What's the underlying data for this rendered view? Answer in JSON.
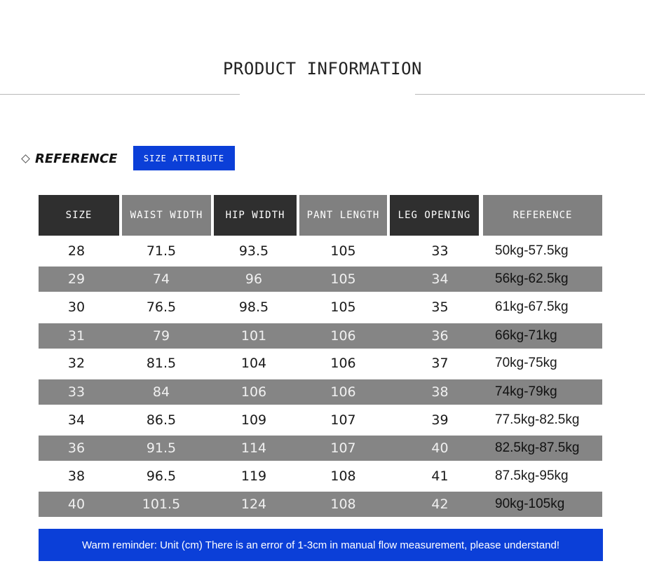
{
  "title": "PRODUCT INFORMATION",
  "reference_label": "REFERENCE",
  "badge": "SIZE ATTRIBUTE",
  "table": {
    "headers": [
      "SIZE",
      "WAIST WIDTH",
      "HIP WIDTH",
      "PANT LENGTH",
      "LEG OPENING",
      "REFERENCE"
    ],
    "rows": [
      [
        "28",
        "71.5",
        "93.5",
        "105",
        "33",
        "50kg-57.5kg"
      ],
      [
        "29",
        "74",
        "96",
        "105",
        "34",
        "56kg-62.5kg"
      ],
      [
        "30",
        "76.5",
        "98.5",
        "105",
        "35",
        "61kg-67.5kg"
      ],
      [
        "31",
        "79",
        "101",
        "106",
        "36",
        "66kg-71kg"
      ],
      [
        "32",
        "81.5",
        "104",
        "106",
        "37",
        "70kg-75kg"
      ],
      [
        "33",
        "84",
        "106",
        "106",
        "38",
        "74kg-79kg"
      ],
      [
        "34",
        "86.5",
        "109",
        "107",
        "39",
        "77.5kg-82.5kg"
      ],
      [
        "36",
        "91.5",
        "114",
        "107",
        "40",
        "82.5kg-87.5kg"
      ],
      [
        "38",
        "96.5",
        "119",
        "108",
        "41",
        "87.5kg-95kg"
      ],
      [
        "40",
        "101.5",
        "124",
        "108",
        "42",
        "90kg-105kg"
      ]
    ]
  },
  "reminder": "Warm reminder: Unit (cm) There is an error of 1-3cm in manual flow measurement, please understand!",
  "colors": {
    "accent_blue": "#0b3fd8",
    "header_dark": "#2f2f2f",
    "header_mid": "#808080",
    "row_shade": "#858585"
  }
}
